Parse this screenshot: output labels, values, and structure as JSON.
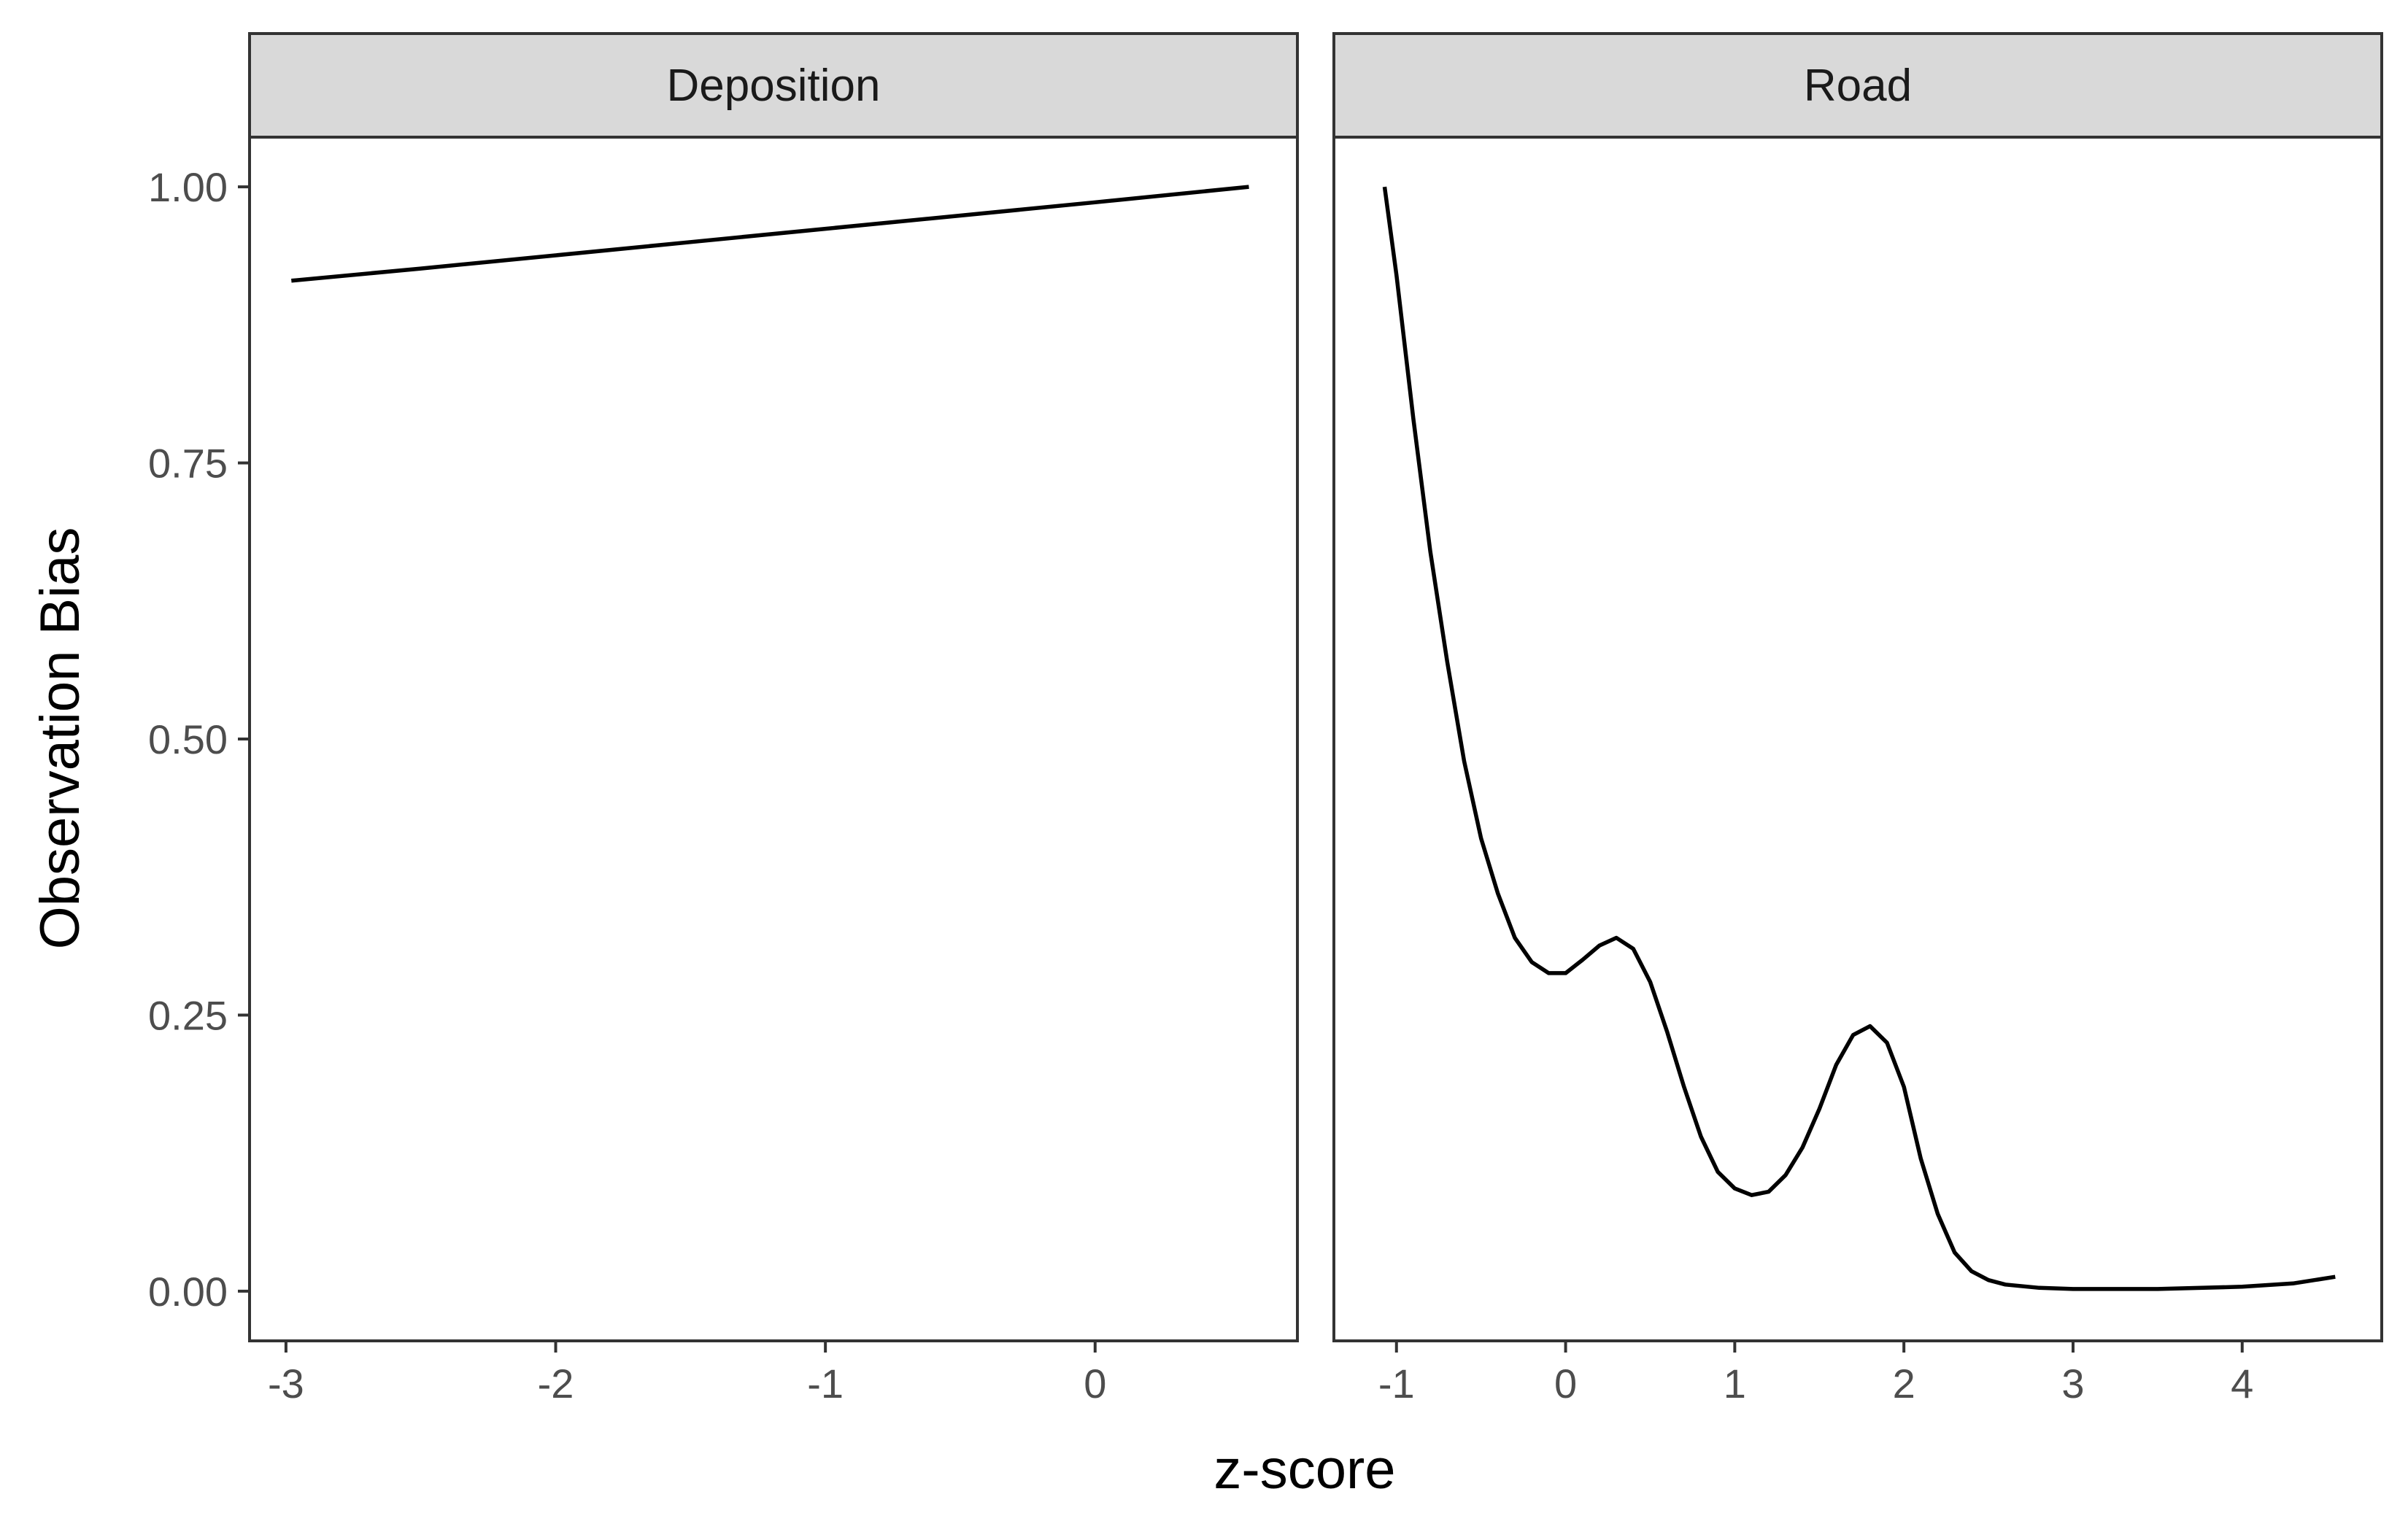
{
  "chart_data": {
    "type": "line",
    "xlabel": "z-score",
    "ylabel": "Observation Bias",
    "ylim": [
      -0.045,
      1.045
    ],
    "y_ticks": [
      1.0,
      0.75,
      0.5,
      0.25,
      0.0
    ],
    "y_tick_labels": [
      "1.00",
      "0.75",
      "0.50",
      "0.25",
      "0.00"
    ],
    "grid": false,
    "colors": {
      "line": "#000000",
      "strip": "#d9d9d9",
      "border": "#333333"
    },
    "panels": [
      {
        "strip_label": "Deposition",
        "xlim": [
          -3.135,
          0.75
        ],
        "x_ticks": [
          -3,
          -2,
          -1,
          0
        ],
        "x_tick_labels": [
          "-3",
          "-2",
          "-1",
          "0"
        ],
        "x": [
          -2.98,
          -2.5,
          -2.0,
          -1.5,
          -1.0,
          -0.5,
          0.0,
          0.57
        ],
        "y": [
          0.915,
          0.926,
          0.938,
          0.95,
          0.962,
          0.974,
          0.986,
          1.0
        ]
      },
      {
        "strip_label": "Road",
        "xlim": [
          -1.37,
          4.825
        ],
        "x_ticks": [
          -1,
          0,
          1,
          2,
          3,
          4
        ],
        "x_tick_labels": [
          "-1",
          "0",
          "1",
          "2",
          "3",
          "4"
        ],
        "x": [
          -1.07,
          -1.0,
          -0.9,
          -0.8,
          -0.7,
          -0.6,
          -0.5,
          -0.4,
          -0.3,
          -0.2,
          -0.1,
          0.0,
          0.1,
          0.2,
          0.3,
          0.4,
          0.5,
          0.6,
          0.7,
          0.8,
          0.9,
          1.0,
          1.1,
          1.2,
          1.3,
          1.4,
          1.5,
          1.6,
          1.7,
          1.8,
          1.9,
          2.0,
          2.1,
          2.2,
          2.3,
          2.4,
          2.5,
          2.6,
          2.8,
          3.0,
          3.5,
          4.0,
          4.3,
          4.55
        ],
        "y": [
          1.0,
          0.92,
          0.79,
          0.67,
          0.57,
          0.48,
          0.41,
          0.36,
          0.32,
          0.298,
          0.288,
          0.288,
          0.3,
          0.313,
          0.32,
          0.31,
          0.28,
          0.235,
          0.185,
          0.14,
          0.108,
          0.093,
          0.087,
          0.09,
          0.105,
          0.13,
          0.165,
          0.205,
          0.232,
          0.24,
          0.225,
          0.185,
          0.12,
          0.07,
          0.035,
          0.018,
          0.01,
          0.006,
          0.003,
          0.002,
          0.002,
          0.004,
          0.007,
          0.013
        ]
      }
    ]
  }
}
